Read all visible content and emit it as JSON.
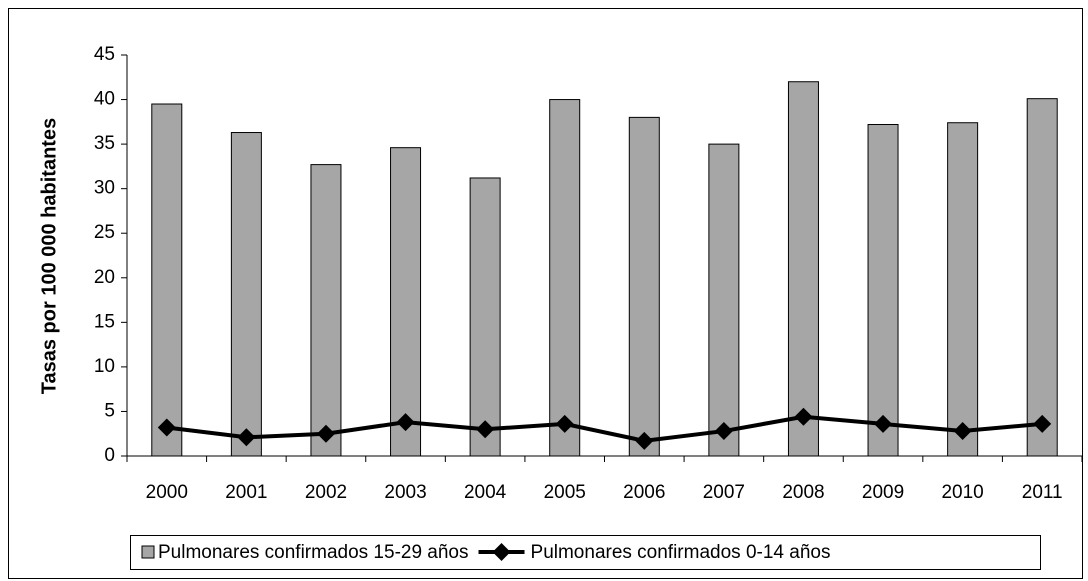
{
  "chart_data": {
    "type": "bar_line",
    "y_label": "Tasas por 100 000 habitantes",
    "categories": [
      "2000",
      "2001",
      "2002",
      "2003",
      "2004",
      "2005",
      "2006",
      "2007",
      "2008",
      "2009",
      "2010",
      "2011"
    ],
    "series": [
      {
        "name": "Pulmonares confirmados 15-29 años",
        "type": "bar",
        "color": "#a6a6a6",
        "values": [
          39.5,
          36.3,
          32.7,
          34.6,
          31.2,
          40.0,
          38.0,
          35.0,
          42.0,
          37.2,
          37.4,
          40.1
        ]
      },
      {
        "name": "Pulmonares confirmados 0-14 años",
        "type": "line",
        "color": "#000000",
        "values": [
          3.2,
          2.1,
          2.5,
          3.8,
          3.0,
          3.6,
          1.7,
          2.8,
          4.4,
          3.6,
          2.8,
          3.6
        ]
      }
    ],
    "ylim": [
      0,
      45
    ],
    "yticks": [
      0,
      5,
      10,
      15,
      20,
      25,
      30,
      35,
      40,
      45
    ],
    "legend": "bottom"
  }
}
